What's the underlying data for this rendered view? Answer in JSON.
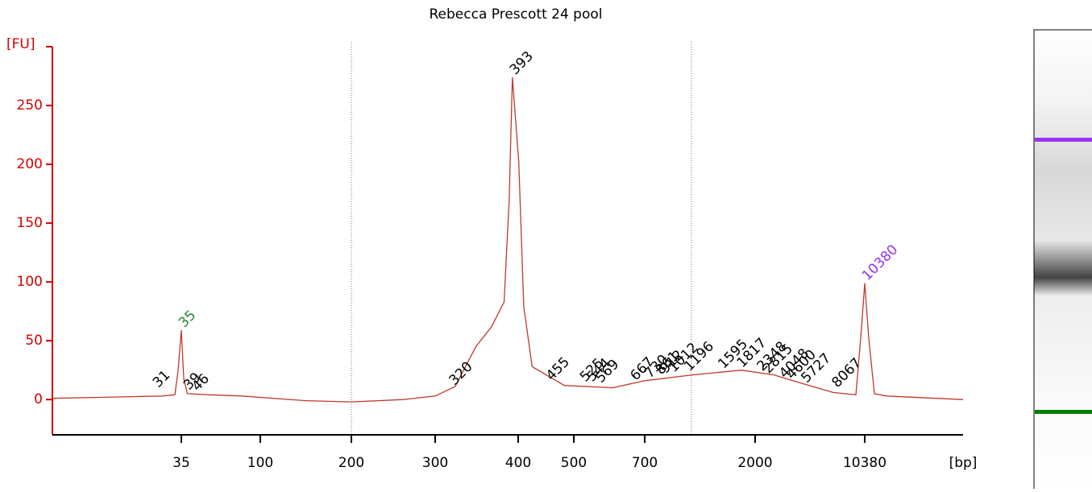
{
  "chart_data": {
    "type": "line",
    "title": "Rebecca Prescott 24 pool",
    "y_label": "[FU]",
    "x_label": "[bp]",
    "color": "#c0392b",
    "axis_color": "#d40000",
    "x": [
      15,
      32,
      34,
      34.5,
      35,
      37,
      40,
      58,
      85,
      150,
      200,
      262,
      300,
      324,
      349,
      368,
      383,
      389,
      393,
      401,
      410,
      425,
      483,
      609,
      700,
      1269,
      1839,
      3417,
      5502,
      7967,
      9702,
      10072,
      10380,
      10569,
      10834,
      11402,
      15000
    ],
    "values": [
      1,
      3,
      4,
      25,
      59,
      18,
      5,
      4,
      3,
      -1,
      -2,
      0,
      3,
      11,
      45,
      62,
      83,
      168,
      274,
      202,
      79,
      28,
      12,
      10,
      16,
      21,
      25,
      21,
      14,
      6,
      4,
      52,
      99,
      52,
      5,
      3,
      0
    ],
    "xlim": [
      15,
      15000
    ],
    "xticks": [
      35,
      100,
      200,
      300,
      400,
      500,
      700,
      2000,
      10380
    ],
    "ylim": [
      -30,
      300
    ],
    "yticks": [
      0,
      50,
      100,
      150,
      200,
      250
    ],
    "marker_lines": [
      200,
      1250
    ],
    "peaks": [
      {
        "x": 35,
        "y": 59,
        "color": "#228b22"
      },
      {
        "x": 393,
        "y": 274,
        "color": "#000000"
      },
      {
        "x": 10380,
        "y": 99,
        "color": "#9933ee"
      },
      {
        "x": 31,
        "y": 8,
        "color": "#000000"
      },
      {
        "x": 39,
        "y": 6,
        "color": "#000000"
      },
      {
        "x": 46,
        "y": 5,
        "color": "#000000"
      },
      {
        "x": 320,
        "y": 10,
        "color": "#000000"
      },
      {
        "x": 455,
        "y": 14,
        "color": "#000000"
      },
      {
        "x": 525,
        "y": 13,
        "color": "#000000"
      },
      {
        "x": 544,
        "y": 13,
        "color": "#000000"
      },
      {
        "x": 569,
        "y": 12,
        "color": "#000000"
      },
      {
        "x": 667,
        "y": 14,
        "color": "#000000"
      },
      {
        "x": 730,
        "y": 16,
        "color": "#000000"
      },
      {
        "x": 861,
        "y": 19,
        "color": "#000000"
      },
      {
        "x": 912,
        "y": 20,
        "color": "#000000"
      },
      {
        "x": 1012,
        "y": 21,
        "color": "#000000"
      },
      {
        "x": 1196,
        "y": 22,
        "color": "#000000"
      },
      {
        "x": 1595,
        "y": 24,
        "color": "#000000"
      },
      {
        "x": 1817,
        "y": 25,
        "color": "#000000"
      },
      {
        "x": 2348,
        "y": 22,
        "color": "#000000"
      },
      {
        "x": 2815,
        "y": 20,
        "color": "#000000"
      },
      {
        "x": 4048,
        "y": 16,
        "color": "#000000"
      },
      {
        "x": 4600,
        "y": 15,
        "color": "#000000"
      },
      {
        "x": 5727,
        "y": 12,
        "color": "#000000"
      },
      {
        "x": 8067,
        "y": 8,
        "color": "#000000"
      }
    ]
  }
}
